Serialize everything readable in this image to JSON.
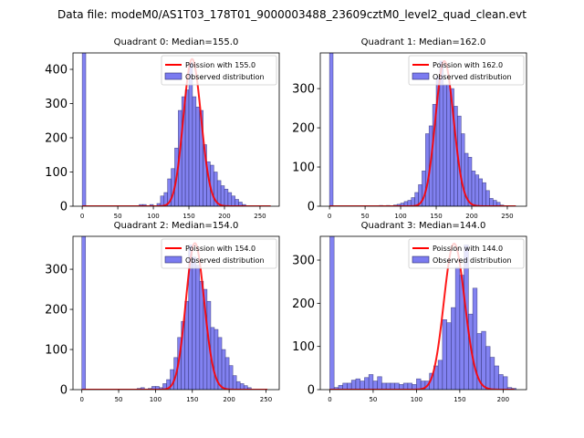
{
  "figure": {
    "suptitle": "Data file: modeM0/AS1T03_178T01_9000003488_23609cztM0_level2_quad_clean.evt"
  },
  "chart_data": [
    {
      "type": "bar",
      "title": "Quadrant 0: Median=155.0",
      "xlabel": "",
      "ylabel": "",
      "xlim": [
        -13,
        277
      ],
      "ylim": [
        0,
        448
      ],
      "xticks": [
        0,
        50,
        100,
        150,
        200,
        250
      ],
      "yticks": [
        0,
        100,
        200,
        300,
        400
      ],
      "bin_width": 5,
      "legend": {
        "position": "top-right",
        "entries": [
          "Poission with 155.0",
          "Observed distribution"
        ]
      },
      "histogram": {
        "name": "Observed distribution",
        "bin_starts": [
          0,
          80,
          85,
          95,
          105,
          110,
          115,
          120,
          125,
          130,
          135,
          140,
          145,
          150,
          155,
          160,
          165,
          170,
          175,
          180,
          185,
          190,
          195,
          200,
          205,
          210,
          215,
          220,
          225
        ],
        "counts": [
          460,
          5,
          5,
          5,
          8,
          30,
          40,
          80,
          110,
          170,
          280,
          320,
          340,
          420,
          320,
          290,
          280,
          180,
          130,
          120,
          100,
          75,
          60,
          50,
          40,
          30,
          20,
          12,
          5
        ]
      },
      "poisson": {
        "name": "Poission with 155.0",
        "mu": 155.0,
        "peak": 430,
        "x_range": [
          0,
          265
        ]
      }
    },
    {
      "type": "bar",
      "title": "Quadrant 1: Median=162.0",
      "xlabel": "",
      "ylabel": "",
      "xlim": [
        -13,
        277
      ],
      "ylim": [
        0,
        391
      ],
      "xticks": [
        0,
        50,
        100,
        150,
        200,
        250
      ],
      "yticks": [
        0,
        100,
        200,
        300
      ],
      "bin_width": 5,
      "legend": {
        "position": "top-right",
        "entries": [
          "Poission with 162.0",
          "Observed distribution"
        ]
      },
      "histogram": {
        "name": "Observed distribution",
        "bin_starts": [
          0,
          70,
          80,
          90,
          95,
          100,
          105,
          110,
          115,
          120,
          125,
          130,
          135,
          140,
          145,
          150,
          155,
          160,
          165,
          170,
          175,
          180,
          185,
          190,
          195,
          200,
          205,
          210,
          215,
          220,
          225,
          230,
          235,
          240
        ],
        "counts": [
          400,
          2,
          2,
          3,
          5,
          8,
          12,
          15,
          22,
          35,
          55,
          90,
          185,
          205,
          260,
          330,
          370,
          310,
          310,
          300,
          255,
          230,
          185,
          135,
          125,
          90,
          80,
          70,
          60,
          40,
          20,
          15,
          10,
          3
        ]
      },
      "poisson": {
        "name": "Poission with 162.0",
        "mu": 162.0,
        "peak": 370,
        "x_range": [
          0,
          262
        ]
      }
    },
    {
      "type": "bar",
      "title": "Quadrant 2: Median=154.0",
      "xlabel": "",
      "ylabel": "",
      "xlim": [
        -12,
        268
      ],
      "ylim": [
        0,
        382
      ],
      "xticks": [
        0,
        50,
        100,
        150,
        200,
        250
      ],
      "yticks": [
        0,
        100,
        200,
        300
      ],
      "bin_width": 5,
      "legend": {
        "position": "top-right",
        "entries": [
          "Poission with 154.0",
          "Observed distribution"
        ]
      },
      "histogram": {
        "name": "Observed distribution",
        "bin_starts": [
          0,
          75,
          80,
          90,
          95,
          100,
          105,
          110,
          115,
          120,
          125,
          130,
          135,
          140,
          145,
          150,
          155,
          160,
          165,
          170,
          175,
          180,
          185,
          190,
          195,
          200,
          205,
          210,
          215,
          220,
          225
        ],
        "counts": [
          385,
          3,
          5,
          3,
          8,
          8,
          5,
          15,
          25,
          50,
          80,
          130,
          170,
          220,
          360,
          330,
          310,
          270,
          250,
          220,
          155,
          150,
          130,
          100,
          80,
          60,
          35,
          20,
          15,
          10,
          5
        ]
      },
      "poisson": {
        "name": "Poission with 154.0",
        "mu": 154.0,
        "peak": 365,
        "x_range": [
          0,
          252
        ]
      }
    },
    {
      "type": "bar",
      "title": "Quadrant 3: Median=144.0",
      "xlabel": "",
      "ylabel": "",
      "xlim": [
        -11,
        227
      ],
      "ylim": [
        0,
        355
      ],
      "xticks": [
        0,
        50,
        100,
        150,
        200
      ],
      "yticks": [
        0,
        100,
        200,
        300
      ],
      "bin_width": 5,
      "legend": {
        "position": "top-right",
        "entries": [
          "Poission with 144.0",
          "Observed distribution"
        ]
      },
      "histogram": {
        "name": "Observed distribution",
        "bin_starts": [
          0,
          5,
          10,
          15,
          20,
          25,
          30,
          35,
          40,
          45,
          50,
          55,
          60,
          65,
          70,
          75,
          80,
          85,
          90,
          95,
          100,
          105,
          110,
          115,
          120,
          125,
          130,
          135,
          140,
          145,
          150,
          155,
          160,
          165,
          170,
          175,
          180,
          185,
          190,
          195,
          200,
          205,
          210
        ],
        "counts": [
          360,
          5,
          10,
          15,
          15,
          22,
          25,
          20,
          28,
          35,
          20,
          30,
          15,
          15,
          15,
          15,
          12,
          15,
          15,
          12,
          25,
          20,
          20,
          38,
          55,
          68,
          162,
          155,
          190,
          283,
          265,
          335,
          175,
          235,
          130,
          135,
          100,
          75,
          55,
          35,
          30,
          5,
          3
        ]
      },
      "poisson": {
        "name": "Poission with 144.0",
        "mu": 144.0,
        "peak": 338,
        "x_range": [
          0,
          213
        ]
      }
    }
  ],
  "colors": {
    "bar_fill": "#7b7bf0",
    "bar_edge": "#2a2a6a",
    "poisson_line": "#ff0000"
  }
}
